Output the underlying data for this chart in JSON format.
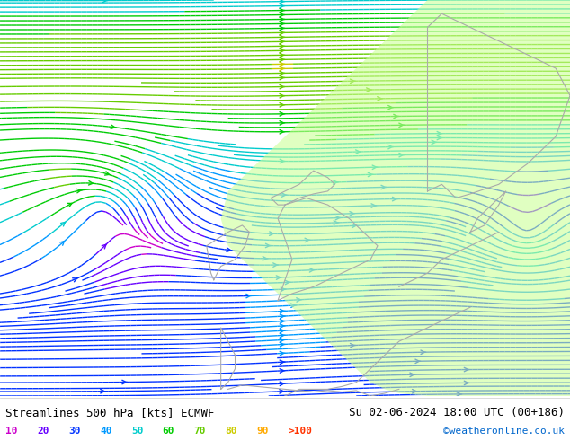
{
  "title_left": "Streamlines 500 hPa [kts] ECMWF",
  "title_right": "Su 02-06-2024 18:00 UTC (00+186)",
  "credit": "©weatheronline.co.uk",
  "legend_values": [
    "10",
    "20",
    "30",
    "40",
    "50",
    "60",
    "70",
    "80",
    "90",
    ">100"
  ],
  "legend_colors": [
    "#cc00cc",
    "#6600ff",
    "#0033ff",
    "#0099ff",
    "#00cccc",
    "#00cc00",
    "#66cc00",
    "#cccc00",
    "#ffaa00",
    "#ff3300"
  ],
  "bg_color": "#e8e8e8",
  "land_color": "#ccff99",
  "coast_color": "#aaaaaa",
  "bottom_bar_color": "#ffffff",
  "streamline_density": 3,
  "fig_width": 6.34,
  "fig_height": 4.9,
  "dpi": 100,
  "xlim": [
    -25,
    15
  ],
  "ylim": [
    43,
    72
  ],
  "vortex1_x": -18,
  "vortex1_y": 57,
  "vortex2_x": 12,
  "vortex2_y": 55
}
